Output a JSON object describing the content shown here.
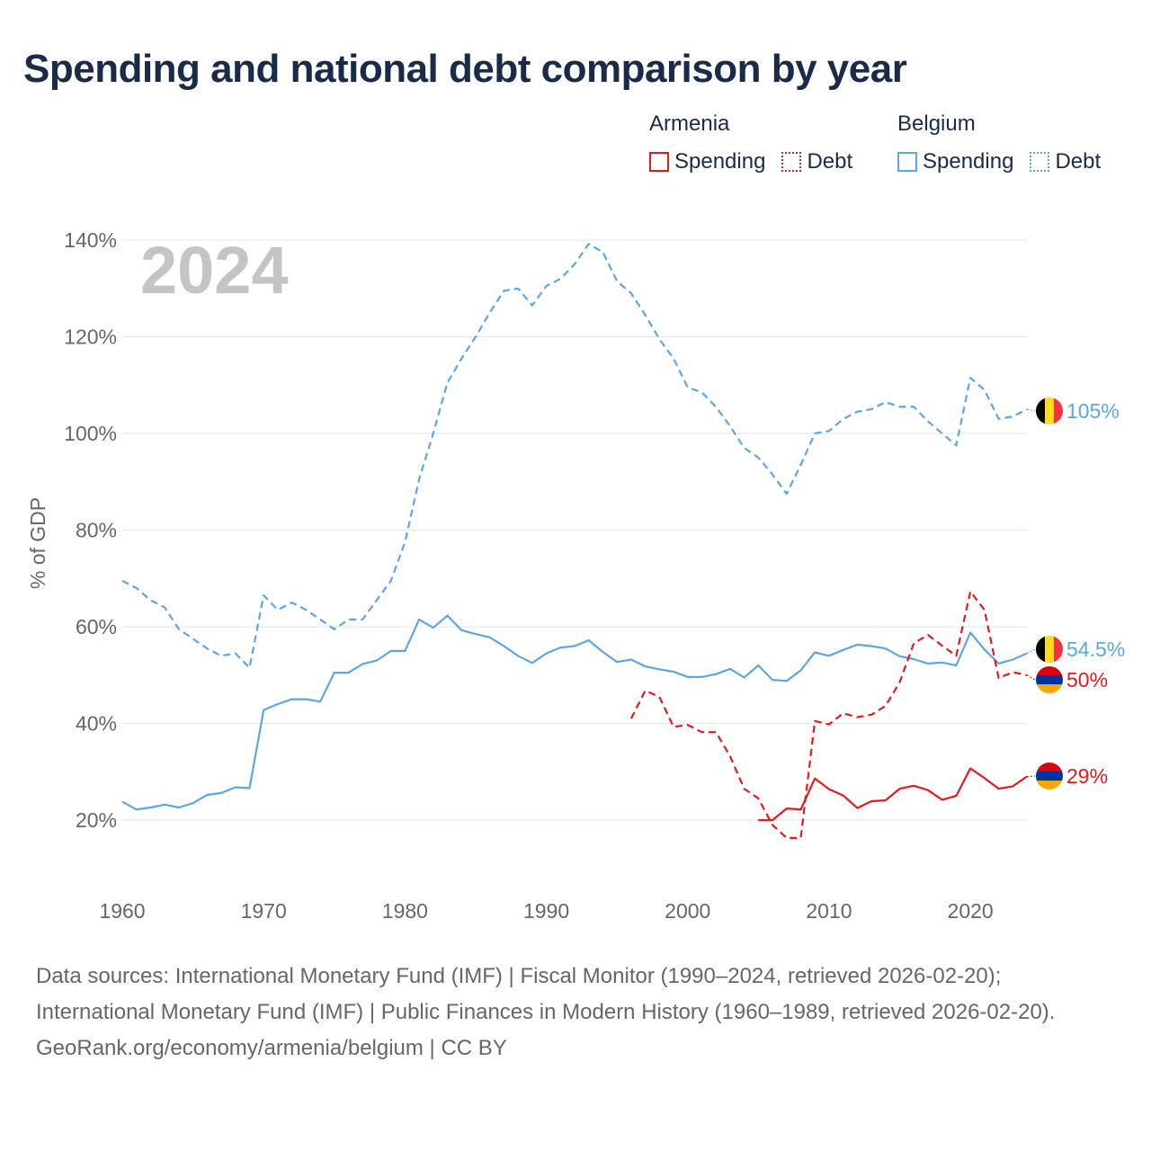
{
  "title": "Spending and national debt comparison by year",
  "legend": {
    "groups": [
      {
        "country": "Armenia",
        "spending_label": "Spending",
        "debt_label": "Debt",
        "color": "#e31a1c"
      },
      {
        "country": "Belgium",
        "spending_label": "Spending",
        "debt_label": "Debt",
        "color": "#5aa6e6"
      }
    ]
  },
  "footer": {
    "sources": "Data sources: International Monetary Fund (IMF) | Fiscal Monitor (1990–2024, retrieved 2026-02-20); International Monetary Fund (IMF) | Public Finances in Modern History (1960–1989, retrieved 2026-02-20).",
    "credit": "GeoRank.org/economy/armenia/belgium | CC BY"
  },
  "chart_data": {
    "type": "line",
    "year_watermark": "2024",
    "ylabel": "% of GDP",
    "xlabel": "",
    "xlim": [
      1960,
      2024
    ],
    "ylim": [
      7,
      145
    ],
    "yticks": [
      20,
      40,
      60,
      80,
      100,
      120,
      140
    ],
    "ytick_labels": [
      "20%",
      "40%",
      "60%",
      "80%",
      "100%",
      "120%",
      "140%"
    ],
    "xticks": [
      1960,
      1970,
      1980,
      1990,
      2000,
      2010,
      2020
    ],
    "xtick_labels": [
      "1960",
      "1970",
      "1980",
      "1990",
      "2000",
      "2010",
      "2020"
    ],
    "grid": "horizontal",
    "series": [
      {
        "name": "Belgium Debt",
        "country": "Belgium",
        "metric": "Debt",
        "color": "#5aa6e6",
        "dash": "dashed",
        "end_label": "105%",
        "flag": "belgium",
        "x": [
          1960,
          1961,
          1962,
          1963,
          1964,
          1965,
          1966,
          1967,
          1968,
          1969,
          1970,
          1971,
          1972,
          1973,
          1974,
          1975,
          1976,
          1977,
          1978,
          1979,
          1980,
          1981,
          1982,
          1983,
          1984,
          1985,
          1986,
          1987,
          1988,
          1989,
          1990,
          1991,
          1992,
          1993,
          1994,
          1995,
          1996,
          1997,
          1998,
          1999,
          2000,
          2001,
          2002,
          2003,
          2004,
          2005,
          2006,
          2007,
          2008,
          2009,
          2010,
          2011,
          2012,
          2013,
          2014,
          2015,
          2016,
          2017,
          2018,
          2019,
          2020,
          2021,
          2022,
          2023,
          2024
        ],
        "y": [
          69.5,
          68,
          65.5,
          64,
          59.5,
          57.5,
          55.5,
          54,
          54.5,
          51.5,
          66.5,
          63.5,
          65,
          63.5,
          61.5,
          59.5,
          61.5,
          61.5,
          65.5,
          69.5,
          77.5,
          90.5,
          100,
          110.5,
          115.5,
          120,
          125,
          129.5,
          130,
          126.5,
          130.5,
          132,
          135,
          139.2,
          137.5,
          131.5,
          129,
          124.5,
          119.5,
          115.5,
          109.5,
          108.5,
          105.5,
          101.5,
          97,
          95,
          91.5,
          87.5,
          93.5,
          100,
          100.5,
          103,
          104.5,
          105,
          106.5,
          105.5,
          105.5,
          102.5,
          100,
          97.5,
          111.5,
          109,
          103,
          103.5,
          105
        ]
      },
      {
        "name": "Belgium Spending",
        "country": "Belgium",
        "metric": "Spending",
        "color": "#5aa6e6",
        "dash": "solid",
        "end_label": "54.5%",
        "flag": "belgium",
        "x": [
          1960,
          1961,
          1962,
          1963,
          1964,
          1965,
          1966,
          1967,
          1968,
          1969,
          1970,
          1971,
          1972,
          1973,
          1974,
          1975,
          1976,
          1977,
          1978,
          1979,
          1980,
          1981,
          1982,
          1983,
          1984,
          1985,
          1986,
          1987,
          1988,
          1989,
          1990,
          1991,
          1992,
          1993,
          1994,
          1995,
          1996,
          1997,
          1998,
          1999,
          2000,
          2001,
          2002,
          2003,
          2004,
          2005,
          2006,
          2007,
          2008,
          2009,
          2010,
          2011,
          2012,
          2013,
          2014,
          2015,
          2016,
          2017,
          2018,
          2019,
          2020,
          2021,
          2022,
          2023,
          2024
        ],
        "y": [
          23.8,
          22.2,
          22.6,
          23.2,
          22.6,
          23.5,
          25.2,
          25.6,
          26.8,
          26.6,
          42.8,
          44,
          45,
          45,
          44.5,
          50.5,
          50.5,
          52.3,
          53,
          55,
          55,
          61.5,
          59.8,
          62.3,
          59.3,
          58.5,
          57.8,
          56,
          54,
          52.5,
          54.5,
          55.7,
          56,
          57.2,
          54.8,
          52.7,
          53.2,
          51.8,
          51.2,
          50.7,
          49.6,
          49.6,
          50.2,
          51.3,
          49.5,
          52,
          49,
          48.8,
          51,
          54.7,
          54,
          55.2,
          56.3,
          56,
          55.5,
          53.9,
          53.3,
          52.4,
          52.6,
          52,
          58.8,
          55.3,
          52.4,
          53.2,
          54.5
        ]
      },
      {
        "name": "Armenia Debt",
        "country": "Armenia",
        "metric": "Debt",
        "color": "#e31a1c",
        "dash": "dashed",
        "end_label": "50%",
        "flag": "armenia",
        "x": [
          1996,
          1997,
          1998,
          1999,
          2000,
          2001,
          2002,
          2003,
          2004,
          2005,
          2006,
          2007,
          2008,
          2009,
          2010,
          2011,
          2012,
          2013,
          2014,
          2015,
          2016,
          2017,
          2018,
          2019,
          2020,
          2021,
          2022,
          2023,
          2024
        ],
        "y": [
          41,
          46.8,
          45.5,
          39.3,
          39.7,
          38.2,
          38.2,
          33.2,
          26.5,
          24.5,
          19,
          16.3,
          16.3,
          40.5,
          39.8,
          42.1,
          41.3,
          41.8,
          43.6,
          48.5,
          56.6,
          58.3,
          56.1,
          54,
          67.3,
          63.5,
          49.4,
          50.6,
          50
        ]
      },
      {
        "name": "Armenia Spending",
        "country": "Armenia",
        "metric": "Spending",
        "color": "#e31a1c",
        "dash": "solid",
        "end_label": "29%",
        "flag": "armenia",
        "x": [
          2005,
          2006,
          2007,
          2008,
          2009,
          2010,
          2011,
          2012,
          2013,
          2014,
          2015,
          2016,
          2017,
          2018,
          2019,
          2020,
          2021,
          2022,
          2023,
          2024
        ],
        "y": [
          20,
          20,
          22.4,
          22.2,
          28.6,
          26.4,
          25.1,
          22.5,
          23.9,
          24.1,
          26.5,
          27.1,
          26.2,
          24.2,
          25,
          30.7,
          28.7,
          26.5,
          27,
          29
        ]
      }
    ]
  }
}
